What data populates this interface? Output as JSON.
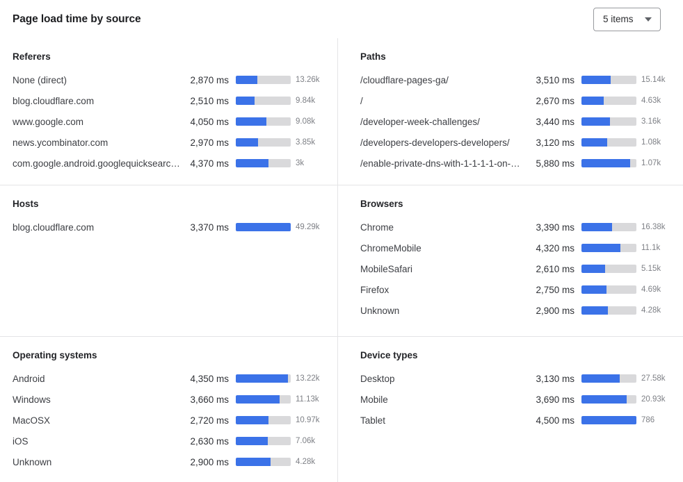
{
  "header": {
    "title": "Page load time by source",
    "items_select": {
      "value": "5 items"
    }
  },
  "colors": {
    "bar_fill": "#3b72e8",
    "bar_track": "#d9d9db"
  },
  "chart_data": [
    {
      "type": "bar",
      "orientation": "horizontal",
      "title": "Referers",
      "value_unit": "ms",
      "bar_scale_ms": 7300,
      "rows": [
        {
          "label": "None (direct)",
          "ms": 2870,
          "ms_label": "2,870 ms",
          "count_label": "13.26k",
          "bar_pct": 39.3
        },
        {
          "label": "blog.cloudflare.com",
          "ms": 2510,
          "ms_label": "2,510 ms",
          "count_label": "9.84k",
          "bar_pct": 34.4
        },
        {
          "label": "www.google.com",
          "ms": 4050,
          "ms_label": "4,050 ms",
          "count_label": "9.08k",
          "bar_pct": 55.5
        },
        {
          "label": "news.ycombinator.com",
          "ms": 2970,
          "ms_label": "2,970 ms",
          "count_label": "3.85k",
          "bar_pct": 40.7
        },
        {
          "label": "com.google.android.googlequicksearc…",
          "ms": 4370,
          "ms_label": "4,370 ms",
          "count_label": "3k",
          "bar_pct": 59.9
        }
      ]
    },
    {
      "type": "bar",
      "orientation": "horizontal",
      "title": "Paths",
      "value_unit": "ms",
      "bar_scale_ms": 6650,
      "rows": [
        {
          "label": "/cloudflare-pages-ga/",
          "ms": 3510,
          "ms_label": "3,510 ms",
          "count_label": "15.14k",
          "bar_pct": 52.8
        },
        {
          "label": "/",
          "ms": 2670,
          "ms_label": "2,670 ms",
          "count_label": "4.63k",
          "bar_pct": 40.2
        },
        {
          "label": "/developer-week-challenges/",
          "ms": 3440,
          "ms_label": "3,440 ms",
          "count_label": "3.16k",
          "bar_pct": 51.7
        },
        {
          "label": "/developers-developers-developers/",
          "ms": 3120,
          "ms_label": "3,120 ms",
          "count_label": "1.08k",
          "bar_pct": 46.9
        },
        {
          "label": "/enable-private-dns-with-1-1-1-1-on-…",
          "ms": 5880,
          "ms_label": "5,880 ms",
          "count_label": "1.07k",
          "bar_pct": 88.4
        }
      ]
    },
    {
      "type": "bar",
      "orientation": "horizontal",
      "title": "Hosts",
      "value_unit": "ms",
      "bar_scale_ms": 3370,
      "rows": [
        {
          "label": "blog.cloudflare.com",
          "ms": 3370,
          "ms_label": "3,370 ms",
          "count_label": "49.29k",
          "bar_pct": 100
        }
      ]
    },
    {
      "type": "bar",
      "orientation": "horizontal",
      "title": "Browsers",
      "value_unit": "ms",
      "bar_scale_ms": 6090,
      "rows": [
        {
          "label": "Chrome",
          "ms": 3390,
          "ms_label": "3,390 ms",
          "count_label": "16.38k",
          "bar_pct": 55.7
        },
        {
          "label": "ChromeMobile",
          "ms": 4320,
          "ms_label": "4,320 ms",
          "count_label": "11.1k",
          "bar_pct": 70.9
        },
        {
          "label": "MobileSafari",
          "ms": 2610,
          "ms_label": "2,610 ms",
          "count_label": "5.15k",
          "bar_pct": 42.9
        },
        {
          "label": "Firefox",
          "ms": 2750,
          "ms_label": "2,750 ms",
          "count_label": "4.69k",
          "bar_pct": 45.2
        },
        {
          "label": "Unknown",
          "ms": 2900,
          "ms_label": "2,900 ms",
          "count_label": "4.28k",
          "bar_pct": 47.6
        }
      ]
    },
    {
      "type": "bar",
      "orientation": "horizontal",
      "title": "Operating systems",
      "value_unit": "ms",
      "bar_scale_ms": 4560,
      "rows": [
        {
          "label": "Android",
          "ms": 4350,
          "ms_label": "4,350 ms",
          "count_label": "13.22k",
          "bar_pct": 95.4
        },
        {
          "label": "Windows",
          "ms": 3660,
          "ms_label": "3,660 ms",
          "count_label": "11.13k",
          "bar_pct": 80.3
        },
        {
          "label": "MacOSX",
          "ms": 2720,
          "ms_label": "2,720 ms",
          "count_label": "10.97k",
          "bar_pct": 59.6
        },
        {
          "label": "iOS",
          "ms": 2630,
          "ms_label": "2,630 ms",
          "count_label": "7.06k",
          "bar_pct": 57.7
        },
        {
          "label": "Unknown",
          "ms": 2900,
          "ms_label": "2,900 ms",
          "count_label": "4.28k",
          "bar_pct": 63.6
        }
      ]
    },
    {
      "type": "bar",
      "orientation": "horizontal",
      "title": "Device types",
      "value_unit": "ms",
      "bar_scale_ms": 4500,
      "rows": [
        {
          "label": "Desktop",
          "ms": 3130,
          "ms_label": "3,130 ms",
          "count_label": "27.58k",
          "bar_pct": 69.6
        },
        {
          "label": "Mobile",
          "ms": 3690,
          "ms_label": "3,690 ms",
          "count_label": "20.93k",
          "bar_pct": 82.0
        },
        {
          "label": "Tablet",
          "ms": 4500,
          "ms_label": "4,500 ms",
          "count_label": "786",
          "bar_pct": 100
        }
      ]
    }
  ]
}
